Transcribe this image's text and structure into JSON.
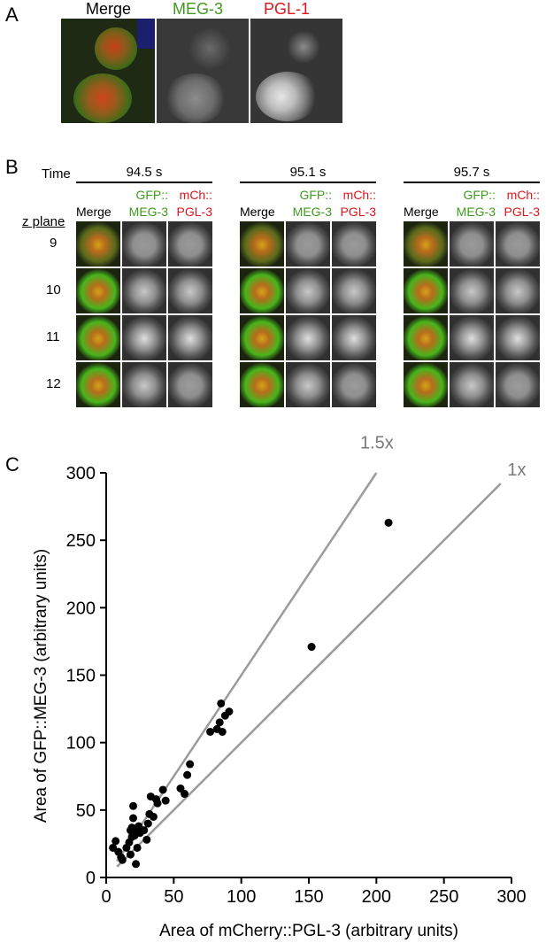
{
  "panelA": {
    "label": "A",
    "headers": [
      {
        "text": "Merge",
        "color": "#000000"
      },
      {
        "text": "MEG-3",
        "color": "#3f9a1e"
      },
      {
        "text": "PGL-1",
        "color": "#e0141b"
      }
    ]
  },
  "panelB": {
    "label": "B",
    "time_label": "Time",
    "times": [
      "94.5 s",
      "95.1 s",
      "95.7 s"
    ],
    "channel_headers": {
      "merge": "Merge",
      "gfp_line1": "GFP::",
      "gfp_line2": "MEG-3",
      "mch_line1": "mCh::",
      "mch_line2": "PGL-3"
    },
    "z_plane_label": "z plane",
    "z_planes": [
      "9",
      "10",
      "11",
      "12"
    ]
  },
  "panelC": {
    "label": "C",
    "chart_data": {
      "type": "scatter",
      "xlabel": "Area of mCherry::PGL-3 (arbitrary units)",
      "ylabel": "Area of GFP::MEG-3 (arbitrary units)",
      "xlim": [
        0,
        300
      ],
      "ylim": [
        0,
        300
      ],
      "xticks": [
        "0",
        "50",
        "100",
        "150",
        "200",
        "250",
        "300"
      ],
      "yticks": [
        "0",
        "50",
        "100",
        "150",
        "200",
        "250",
        "300"
      ],
      "grid": false,
      "reference_lines": [
        {
          "label": "1.5x",
          "slope": 1.5,
          "color": "#9b9b9b"
        },
        {
          "label": "1x",
          "slope": 1.0,
          "color": "#9b9b9b"
        }
      ],
      "points": [
        [
          5,
          22
        ],
        [
          7,
          27
        ],
        [
          9,
          19
        ],
        [
          11,
          15
        ],
        [
          12,
          13
        ],
        [
          15,
          22
        ],
        [
          17,
          26
        ],
        [
          18,
          35
        ],
        [
          18,
          17
        ],
        [
          19,
          30
        ],
        [
          19,
          37
        ],
        [
          20,
          44
        ],
        [
          20,
          53
        ],
        [
          21,
          31
        ],
        [
          22,
          35
        ],
        [
          22,
          10
        ],
        [
          23,
          22
        ],
        [
          24,
          38
        ],
        [
          25,
          33
        ],
        [
          28,
          35
        ],
        [
          30,
          28
        ],
        [
          31,
          40
        ],
        [
          32,
          47
        ],
        [
          33,
          60
        ],
        [
          35,
          45
        ],
        [
          37,
          58
        ],
        [
          38,
          55
        ],
        [
          42,
          65
        ],
        [
          44,
          57
        ],
        [
          55,
          66
        ],
        [
          58,
          62
        ],
        [
          60,
          76
        ],
        [
          62,
          84
        ],
        [
          77,
          108
        ],
        [
          82,
          110
        ],
        [
          84,
          115
        ],
        [
          85,
          129
        ],
        [
          86,
          108
        ],
        [
          88,
          120
        ],
        [
          91,
          123
        ],
        [
          152,
          171
        ],
        [
          209,
          263
        ]
      ]
    }
  }
}
